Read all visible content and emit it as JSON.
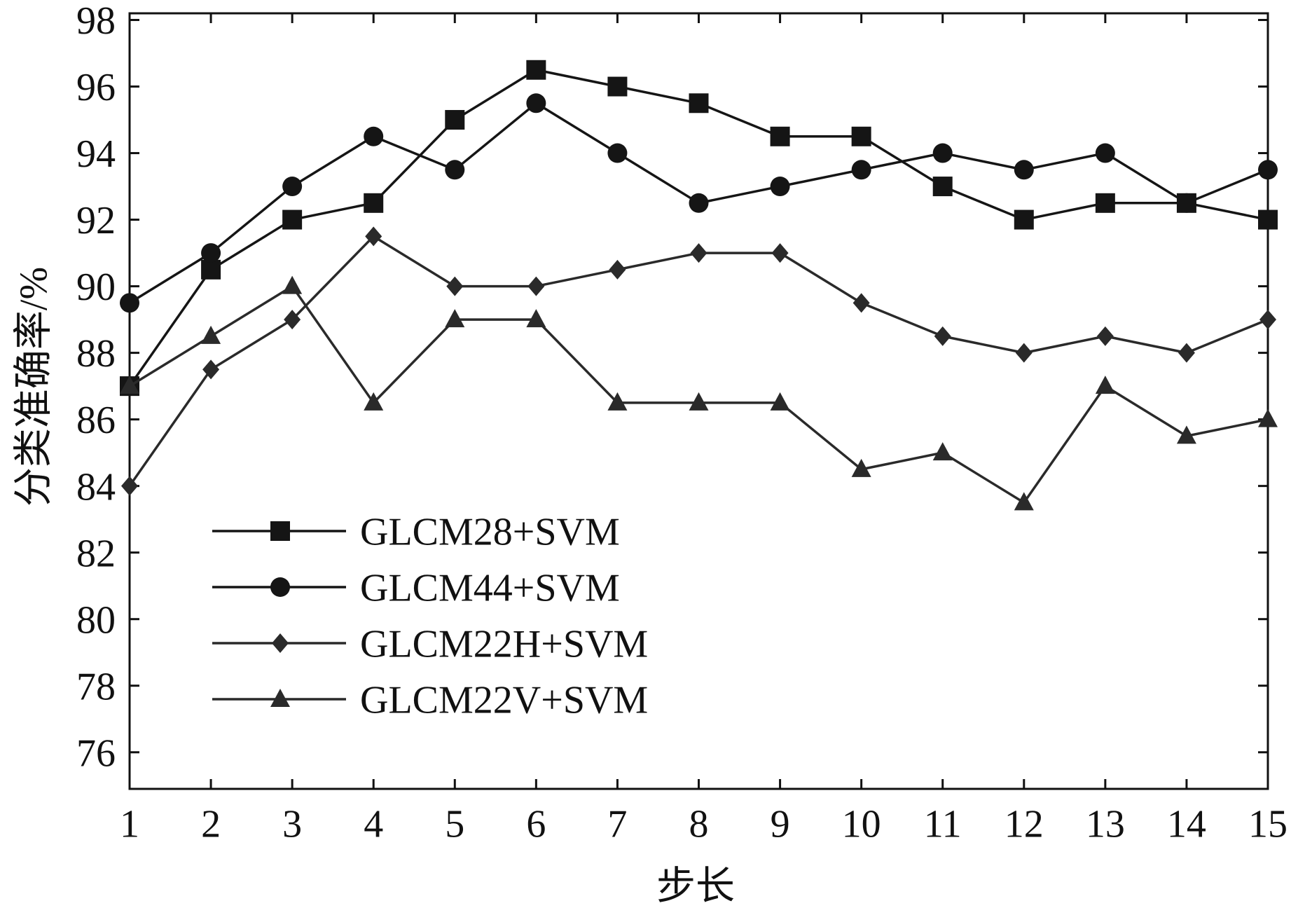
{
  "chart_data": {
    "type": "line",
    "title": "",
    "xlabel": "步长",
    "ylabel": "分类准确率/%",
    "x": [
      1,
      2,
      3,
      4,
      5,
      6,
      7,
      8,
      9,
      10,
      11,
      12,
      13,
      14,
      15
    ],
    "xlim": [
      1,
      15
    ],
    "ylim": [
      74.9,
      98.2
    ],
    "yticks": [
      "76",
      "78",
      "80",
      "82",
      "84",
      "86",
      "88",
      "90",
      "92",
      "94",
      "96",
      "98"
    ],
    "grid": false,
    "legend_position": "lower-left",
    "series": [
      {
        "name": "GLCM28+SVM",
        "marker": "square",
        "color": "#151515",
        "values": [
          87,
          90.5,
          92,
          92.5,
          95,
          96.5,
          96,
          95.5,
          94.5,
          94.5,
          93,
          92,
          92.5,
          92.5,
          92
        ]
      },
      {
        "name": "GLCM44+SVM",
        "marker": "circle",
        "color": "#151515",
        "values": [
          89.5,
          91,
          93,
          94.5,
          93.5,
          95.5,
          94,
          92.5,
          93,
          93.5,
          94,
          93.5,
          94,
          92.5,
          93.5
        ]
      },
      {
        "name": "GLCM22H+SVM",
        "marker": "diamond",
        "color": "#2a2a2a",
        "values": [
          84,
          87.5,
          89,
          91.5,
          90,
          90,
          90.5,
          91,
          91,
          89.5,
          88.5,
          88,
          88.5,
          88,
          89
        ]
      },
      {
        "name": "GLCM22V+SVM",
        "marker": "triangle",
        "color": "#2a2a2a",
        "values": [
          87,
          88.5,
          90,
          86.5,
          89,
          89,
          86.5,
          86.5,
          86.5,
          84.5,
          85,
          83.5,
          87,
          85.5,
          86
        ]
      }
    ]
  }
}
